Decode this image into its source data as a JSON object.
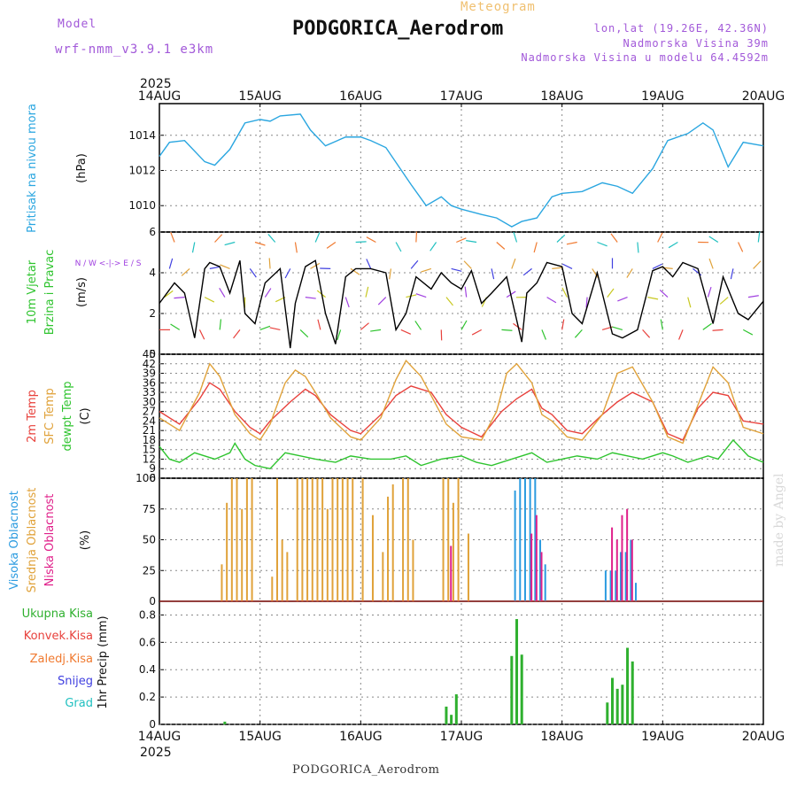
{
  "header": {
    "model_label": "Model",
    "model_name": "wrf-nmm_v3.9.1 e3km",
    "meteogram_label": "Meteogram",
    "station_title": "PODGORICA_Aerodrom",
    "coords": "lon,lat (19.26E, 42.36N)",
    "elevation": "Nadmorska Visina 39m",
    "model_elevation": "Nadmorska Visina u modelu 64.4592m"
  },
  "footer": {
    "station": "PODGORICA_Aerodrom"
  },
  "watermark": "made by Angel",
  "colors": {
    "pressure": "#2aa6e0",
    "wind_speed": "#000000",
    "temp2m": "#e8413c",
    "sfc_temp": "#e0a23a",
    "dewpt": "#2fc42f",
    "cloud_high": "#2b9be0",
    "cloud_mid": "#e0a23a",
    "cloud_low": "#e0208a",
    "precip_total": "#2fb02f",
    "precip_conv": "#e8413c",
    "precip_frz": "#f07a30",
    "snow": "#4040e0",
    "grad": "#20c0c0"
  },
  "chart_data": [
    {
      "type": "line",
      "title": "Pritisak na nivou mora",
      "ylabel": "(hPa)",
      "ylim": [
        1008.5,
        1015.8
      ],
      "yticks": [
        "1010",
        "1012",
        "1014"
      ],
      "x_dates": [
        "14AUG",
        "15AUG",
        "16AUG",
        "17AUG",
        "18AUG",
        "19AUG",
        "20AUG"
      ],
      "year": "2025",
      "series": [
        {
          "name": "Pressure",
          "color": "#2aa6e0",
          "x": [
            0,
            0.1,
            0.25,
            0.45,
            0.55,
            0.7,
            0.85,
            1.0,
            1.1,
            1.2,
            1.4,
            1.5,
            1.65,
            1.85,
            2.0,
            2.1,
            2.25,
            2.5,
            2.65,
            2.8,
            2.9,
            3.0,
            3.2,
            3.35,
            3.5,
            3.6,
            3.75,
            3.9,
            4.0,
            4.2,
            4.4,
            4.55,
            4.7,
            4.9,
            5.05,
            5.25,
            5.4,
            5.5,
            5.65,
            5.8,
            6.0
          ],
          "y": [
            1012.8,
            1013.6,
            1013.7,
            1012.5,
            1012.3,
            1013.2,
            1014.7,
            1014.9,
            1014.8,
            1015.1,
            1015.2,
            1014.3,
            1013.4,
            1013.9,
            1013.9,
            1013.7,
            1013.3,
            1011.2,
            1010.0,
            1010.5,
            1010.0,
            1009.8,
            1009.5,
            1009.3,
            1008.8,
            1009.1,
            1009.3,
            1010.5,
            1010.7,
            1010.8,
            1011.3,
            1011.1,
            1010.7,
            1012.1,
            1013.7,
            1014.1,
            1014.7,
            1014.3,
            1012.2,
            1013.6,
            1013.4
          ]
        }
      ]
    },
    {
      "type": "line",
      "title": "10m Vjetar Brzina i Pravac",
      "ylabel": "(m/s)",
      "ylim": [
        0,
        6
      ],
      "yticks": [
        "0",
        "2",
        "4",
        "6"
      ],
      "compass": "N / W <-|-> E / S",
      "series": [
        {
          "name": "Wind speed",
          "color": "#000000",
          "x": [
            0,
            0.15,
            0.25,
            0.35,
            0.45,
            0.5,
            0.6,
            0.7,
            0.8,
            0.85,
            0.95,
            1.05,
            1.2,
            1.3,
            1.35,
            1.45,
            1.55,
            1.65,
            1.75,
            1.85,
            1.95,
            2.1,
            2.25,
            2.35,
            2.45,
            2.55,
            2.7,
            2.8,
            2.9,
            3.0,
            3.1,
            3.2,
            3.3,
            3.45,
            3.6,
            3.65,
            3.75,
            3.85,
            4.0,
            4.1,
            4.2,
            4.35,
            4.5,
            4.6,
            4.75,
            4.9,
            5.0,
            5.1,
            5.2,
            5.35,
            5.5,
            5.6,
            5.75,
            5.85,
            6.0
          ],
          "y": [
            2.5,
            3.5,
            3.0,
            0.8,
            4.2,
            4.5,
            4.3,
            3.0,
            4.6,
            2.0,
            1.5,
            3.5,
            4.2,
            0.3,
            2.5,
            4.3,
            4.6,
            2.0,
            0.5,
            3.8,
            4.2,
            4.2,
            4.0,
            1.2,
            2.0,
            3.8,
            3.2,
            4.0,
            3.5,
            3.2,
            4.1,
            2.5,
            3.0,
            3.8,
            0.6,
            3.0,
            3.5,
            4.5,
            4.3,
            2.0,
            1.5,
            4.0,
            1.0,
            0.8,
            1.2,
            4.1,
            4.3,
            3.8,
            4.5,
            4.2,
            1.5,
            3.8,
            2.0,
            1.7,
            2.6
          ]
        }
      ]
    },
    {
      "type": "line",
      "title": "2m Temp / SFC Temp / dewpt Temp",
      "ylabel": "(C)",
      "ylim": [
        6,
        45
      ],
      "yticks": [
        "6",
        "9",
        "12",
        "15",
        "18",
        "21",
        "24",
        "27",
        "30",
        "33",
        "36",
        "39",
        "42",
        "45"
      ],
      "series": [
        {
          "name": "2m Temp",
          "color": "#e8413c",
          "x": [
            0,
            0.2,
            0.4,
            0.5,
            0.6,
            0.75,
            0.9,
            1.0,
            1.1,
            1.3,
            1.45,
            1.55,
            1.7,
            1.9,
            2.0,
            2.2,
            2.35,
            2.5,
            2.7,
            2.85,
            3.0,
            3.2,
            3.4,
            3.55,
            3.7,
            3.8,
            3.9,
            4.05,
            4.2,
            4.4,
            4.55,
            4.7,
            4.9,
            5.05,
            5.2,
            5.35,
            5.5,
            5.65,
            5.8,
            6.0
          ],
          "y": [
            27,
            23,
            31,
            36,
            34,
            27,
            22,
            20,
            24,
            30,
            34,
            32,
            26,
            21,
            20,
            26,
            32,
            35,
            33,
            26,
            22,
            19,
            27,
            31,
            34,
            28,
            26,
            21,
            20,
            26,
            30,
            33,
            30,
            20,
            18,
            28,
            33,
            32,
            24,
            23
          ]
        },
        {
          "name": "SFC Temp",
          "color": "#e0a23a",
          "x": [
            0,
            0.2,
            0.4,
            0.5,
            0.6,
            0.75,
            0.9,
            1.0,
            1.1,
            1.25,
            1.35,
            1.45,
            1.55,
            1.7,
            1.9,
            2.0,
            2.2,
            2.35,
            2.45,
            2.6,
            2.85,
            3.0,
            3.2,
            3.35,
            3.45,
            3.55,
            3.7,
            3.8,
            3.9,
            4.05,
            4.2,
            4.4,
            4.55,
            4.7,
            4.9,
            5.05,
            5.2,
            5.35,
            5.5,
            5.65,
            5.8,
            6.0
          ],
          "y": [
            25,
            21,
            33,
            42,
            38,
            26,
            20,
            18,
            23,
            36,
            40,
            38,
            33,
            25,
            19,
            18,
            25,
            37,
            43,
            38,
            23,
            19,
            18,
            27,
            39,
            42,
            36,
            26,
            24,
            19,
            18,
            26,
            39,
            41,
            30,
            19,
            17,
            29,
            41,
            36,
            22,
            20
          ]
        },
        {
          "name": "dewpt Temp",
          "color": "#2fc42f",
          "x": [
            0,
            0.1,
            0.2,
            0.35,
            0.55,
            0.7,
            0.75,
            0.85,
            0.95,
            1.1,
            1.25,
            1.4,
            1.55,
            1.75,
            1.9,
            2.1,
            2.3,
            2.45,
            2.6,
            2.8,
            3.0,
            3.15,
            3.3,
            3.5,
            3.7,
            3.85,
            4.0,
            4.15,
            4.35,
            4.5,
            4.65,
            4.8,
            5.0,
            5.1,
            5.25,
            5.45,
            5.55,
            5.7,
            5.85,
            6.0
          ],
          "y": [
            16,
            12,
            11,
            14,
            12,
            14,
            17,
            12,
            10,
            9,
            14,
            13,
            12,
            11,
            13,
            12,
            12,
            13,
            10,
            12,
            13,
            11,
            10,
            12,
            14,
            11,
            12,
            13,
            12,
            14,
            13,
            12,
            14,
            13,
            11,
            13,
            12,
            18,
            13,
            11
          ]
        }
      ]
    },
    {
      "type": "bar",
      "title": "Visoka / Srednja / Niska Oblacnost",
      "ylabel": "(%)",
      "ylim": [
        0,
        100
      ],
      "yticks": [
        "0",
        "25",
        "50",
        "75",
        "100"
      ],
      "series": [
        {
          "name": "Srednja Oblacnost",
          "color": "#e0a23a",
          "x": [
            0.62,
            0.67,
            0.72,
            0.77,
            0.82,
            0.87,
            0.92,
            1.12,
            1.17,
            1.22,
            1.27,
            1.37,
            1.42,
            1.47,
            1.52,
            1.57,
            1.62,
            1.67,
            1.72,
            1.77,
            1.82,
            1.87,
            1.92,
            2.02,
            2.12,
            2.22,
            2.27,
            2.32,
            2.42,
            2.47,
            2.52,
            2.82,
            2.87,
            2.92,
            2.97,
            3.07
          ],
          "values": [
            30,
            80,
            100,
            100,
            75,
            100,
            100,
            20,
            100,
            50,
            40,
            100,
            100,
            100,
            100,
            100,
            100,
            75,
            100,
            100,
            100,
            100,
            100,
            100,
            70,
            40,
            85,
            95,
            100,
            100,
            50,
            100,
            100,
            80,
            100,
            55
          ]
        },
        {
          "name": "Visoka Oblacnost",
          "color": "#2b9be0",
          "x": [
            3.52,
            3.57,
            3.62,
            3.67,
            3.72,
            3.77,
            3.82,
            4.42,
            4.47,
            4.52,
            4.57,
            4.62,
            4.67,
            4.72
          ],
          "values": [
            90,
            100,
            100,
            100,
            100,
            50,
            30,
            25,
            25,
            25,
            40,
            40,
            50,
            15
          ]
        },
        {
          "name": "Niska Oblacnost",
          "color": "#e0208a",
          "x": [
            2.87,
            3.67,
            3.72,
            3.77,
            4.47,
            4.52,
            4.57,
            4.62,
            4.67
          ],
          "values": [
            45,
            55,
            70,
            40,
            60,
            50,
            70,
            75,
            50
          ]
        }
      ]
    },
    {
      "type": "bar",
      "title": "1hr Precip",
      "ylabel": "1hr Precip (mm)",
      "ylim": [
        0,
        0.9
      ],
      "yticks": [
        "0",
        "0.2",
        "0.4",
        "0.6",
        "0.8"
      ],
      "legend": [
        "Ukupna Kisa",
        "Konvek.Kisa",
        "Zaledj.Kisa",
        "Snijeg",
        "Grad"
      ],
      "series": [
        {
          "name": "Ukupna Kisa",
          "color": "#2fb02f",
          "x": [
            0.65,
            2.85,
            2.9,
            2.95,
            3.5,
            3.55,
            3.6,
            4.45,
            4.5,
            4.55,
            4.6,
            4.65,
            4.7
          ],
          "values": [
            0.02,
            0.13,
            0.07,
            0.22,
            0.5,
            0.77,
            0.51,
            0.16,
            0.34,
            0.26,
            0.29,
            0.56,
            0.46
          ]
        }
      ]
    }
  ]
}
